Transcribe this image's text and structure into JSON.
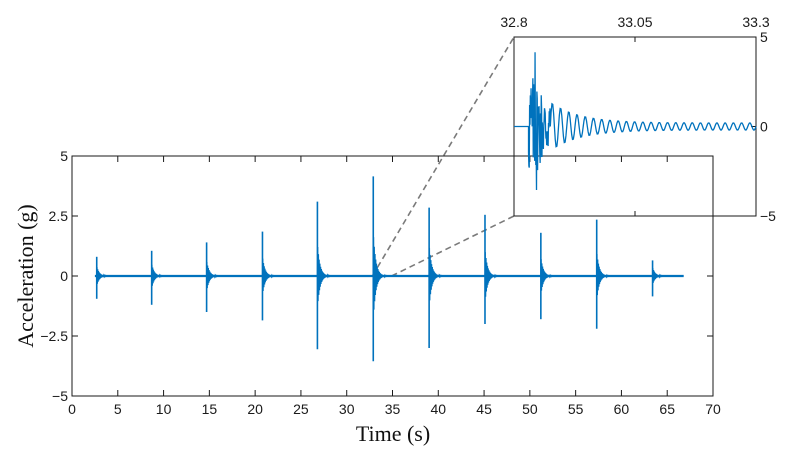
{
  "chart_data": [
    {
      "type": "line",
      "name": "main",
      "title": "",
      "xlabel": "Time (s)",
      "ylabel": "Acceleration (g)",
      "xlim": [
        0,
        70
      ],
      "ylim": [
        -5,
        5
      ],
      "x_ticks": [
        0,
        5,
        10,
        15,
        20,
        25,
        30,
        35,
        40,
        45,
        50,
        55,
        60,
        65,
        70
      ],
      "x_tick_labels": [
        "0",
        "5",
        "10",
        "15",
        "20",
        "25",
        "30",
        "35",
        "40",
        "45",
        "50",
        "55",
        "60",
        "65",
        "70"
      ],
      "y_ticks": [
        -5,
        -2.5,
        0,
        2.5,
        5
      ],
      "y_tick_labels": [
        "−5",
        "−2.5",
        "0",
        "2.5",
        "5"
      ],
      "series_color": "#0072bd",
      "signal_range": [
        2.5,
        66.8
      ],
      "impacts": [
        {
          "t": 2.7,
          "peak": 0.8,
          "trough": -0.95
        },
        {
          "t": 8.7,
          "peak": 1.05,
          "trough": -1.2
        },
        {
          "t": 14.7,
          "peak": 1.4,
          "trough": -1.5
        },
        {
          "t": 20.8,
          "peak": 1.85,
          "trough": -1.85
        },
        {
          "t": 26.8,
          "peak": 3.1,
          "trough": -3.05
        },
        {
          "t": 32.9,
          "peak": 4.15,
          "trough": -3.55
        },
        {
          "t": 39.0,
          "peak": 2.85,
          "trough": -3.0
        },
        {
          "t": 45.1,
          "peak": 2.55,
          "trough": -2.0
        },
        {
          "t": 51.2,
          "peak": 1.8,
          "trough": -1.8
        },
        {
          "t": 57.3,
          "peak": 2.35,
          "trough": -2.2
        },
        {
          "t": 63.4,
          "peak": 0.65,
          "trough": -0.85
        }
      ],
      "zoom_window": [
        32.8,
        33.3
      ]
    },
    {
      "type": "line",
      "name": "inset",
      "title": "",
      "xlabel": "",
      "ylabel": "",
      "xlim": [
        32.8,
        33.3
      ],
      "ylim": [
        -5,
        5
      ],
      "x_ticks": [
        32.8,
        33.05,
        33.3
      ],
      "x_tick_labels": [
        "32.8",
        "33.05",
        "33.3"
      ],
      "y_ticks": [
        -5,
        0,
        5
      ],
      "y_tick_labels": [
        "−5",
        "0",
        "5"
      ],
      "series_color": "#0072bd",
      "onset": 32.83,
      "peak": 4.15,
      "trough": -3.55,
      "decay_period": 0.017
    }
  ]
}
